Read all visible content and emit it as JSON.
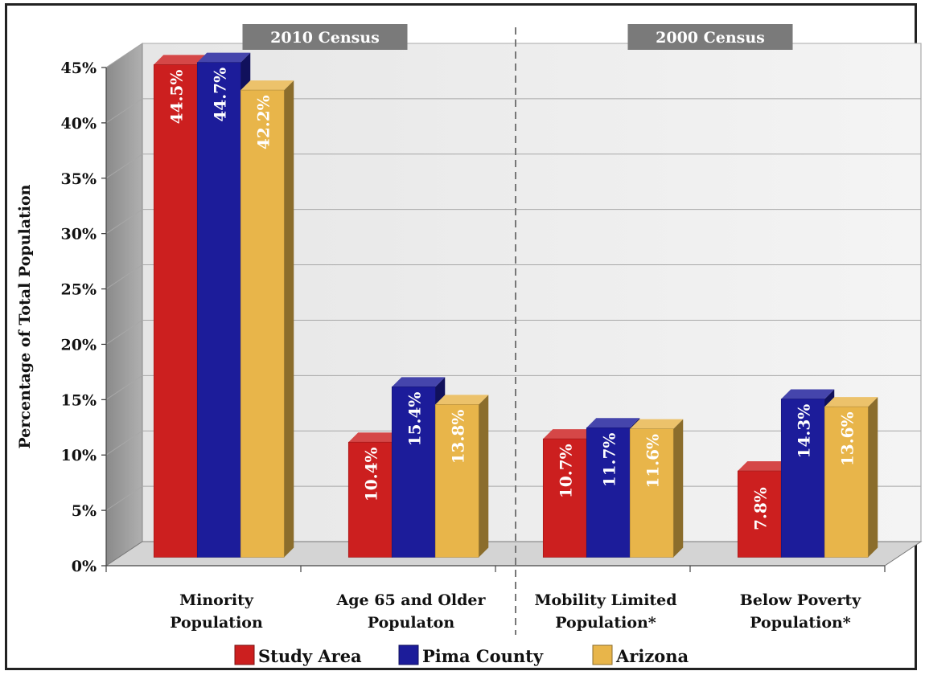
{
  "chart_data": {
    "type": "bar",
    "categories": [
      [
        "Minority",
        "Population"
      ],
      [
        "Age 65 and Older",
        "Populaton"
      ],
      [
        "Mobility Limited",
        "Population*"
      ],
      [
        "Below Poverty",
        "Population*"
      ]
    ],
    "series": [
      {
        "name": "Study Area",
        "values": [
          44.5,
          10.4,
          10.7,
          7.8
        ],
        "labels": [
          "44.5%",
          "10.4%",
          "10.7%",
          "7.8%"
        ]
      },
      {
        "name": "Pima County",
        "values": [
          44.7,
          15.4,
          11.7,
          14.3
        ],
        "labels": [
          "44.7%",
          "15.4%",
          "11.7%",
          "14.3%"
        ]
      },
      {
        "name": "Arizona",
        "values": [
          42.2,
          13.8,
          11.6,
          13.6
        ],
        "labels": [
          "42.2%",
          "13.8%",
          "11.6%",
          "13.6%"
        ]
      }
    ],
    "ylabel": "Percentage of  Total Population",
    "ylim": [
      0,
      45
    ],
    "yticks": [
      "0%",
      "5%",
      "10%",
      "15%",
      "20%",
      "25%",
      "30%",
      "35%",
      "40%",
      "45%"
    ],
    "section_labels": [
      "2010 Census",
      "2000  Census"
    ],
    "legend_position": "bottom",
    "grid": true,
    "colors": {
      "Study Area": "#cc1f1f",
      "Pima County": "#1c1c9a",
      "Arizona": "#e8b54a"
    }
  }
}
